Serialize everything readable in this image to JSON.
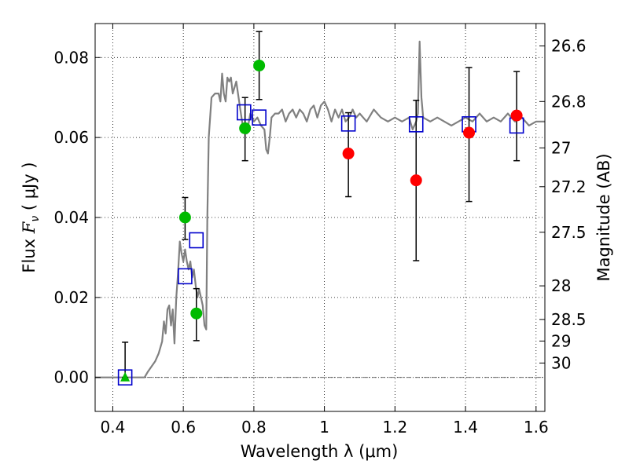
{
  "chart_data": {
    "type": "scatter",
    "xlabel": "Wavelength  λ (μm)",
    "ylabel_prefix": "Flux  ",
    "ylabel_var": "F",
    "ylabel_sub": "ν",
    "ylabel_suffix": "  ( μJy )",
    "y2label": "Magnitude (AB)",
    "xlim": [
      0.35,
      1.625
    ],
    "ylim": [
      -0.0085,
      0.0885
    ],
    "grid": true,
    "grid_style": "dotted",
    "x_ticks": [
      {
        "value": 0.4,
        "label": "0.4"
      },
      {
        "value": 0.6,
        "label": "0.6"
      },
      {
        "value": 0.8,
        "label": "0.8"
      },
      {
        "value": 1.0,
        "label": "1"
      },
      {
        "value": 1.2,
        "label": "1.2"
      },
      {
        "value": 1.4,
        "label": "1.4"
      },
      {
        "value": 1.6,
        "label": "1.6"
      }
    ],
    "y_ticks": [
      {
        "value": 0.0,
        "label": "0.00"
      },
      {
        "value": 0.02,
        "label": "0.02"
      },
      {
        "value": 0.04,
        "label": "0.04"
      },
      {
        "value": 0.06,
        "label": "0.06"
      },
      {
        "value": 0.08,
        "label": "0.08"
      }
    ],
    "y2_ticks": [
      {
        "flux": 0.0829,
        "label": "26.6"
      },
      {
        "flux": 0.069,
        "label": "26.8"
      },
      {
        "flux": 0.0574,
        "label": "27"
      },
      {
        "flux": 0.0477,
        "label": "27.2"
      },
      {
        "flux": 0.0363,
        "label": "27.5"
      },
      {
        "flux": 0.0229,
        "label": "28"
      },
      {
        "flux": 0.0145,
        "label": "28.5"
      },
      {
        "flux": 0.0091,
        "label": "29"
      },
      {
        "flux": 0.0036,
        "label": "30"
      }
    ],
    "zero_line": 0.0,
    "series": [
      {
        "kind": "line",
        "color": "#808080",
        "points": [
          [
            0.35,
            0.0
          ],
          [
            0.49,
            0.0
          ],
          [
            0.5,
            0.0015
          ],
          [
            0.52,
            0.004
          ],
          [
            0.53,
            0.006
          ],
          [
            0.54,
            0.009
          ],
          [
            0.545,
            0.014
          ],
          [
            0.55,
            0.011
          ],
          [
            0.555,
            0.017
          ],
          [
            0.56,
            0.018
          ],
          [
            0.565,
            0.013
          ],
          [
            0.57,
            0.017
          ],
          [
            0.575,
            0.0085
          ],
          [
            0.58,
            0.02
          ],
          [
            0.585,
            0.026
          ],
          [
            0.59,
            0.034
          ],
          [
            0.595,
            0.031
          ],
          [
            0.6,
            0.029
          ],
          [
            0.605,
            0.032
          ],
          [
            0.61,
            0.029
          ],
          [
            0.615,
            0.027
          ],
          [
            0.62,
            0.029
          ],
          [
            0.625,
            0.025
          ],
          [
            0.63,
            0.027
          ],
          [
            0.635,
            0.023
          ],
          [
            0.64,
            0.02
          ],
          [
            0.645,
            0.022
          ],
          [
            0.65,
            0.02
          ],
          [
            0.655,
            0.018
          ],
          [
            0.66,
            0.013
          ],
          [
            0.665,
            0.012
          ],
          [
            0.668,
            0.04
          ],
          [
            0.672,
            0.06
          ],
          [
            0.68,
            0.07
          ],
          [
            0.69,
            0.071
          ],
          [
            0.7,
            0.071
          ],
          [
            0.705,
            0.069
          ],
          [
            0.71,
            0.076
          ],
          [
            0.715,
            0.071
          ],
          [
            0.72,
            0.069
          ],
          [
            0.725,
            0.075
          ],
          [
            0.73,
            0.074
          ],
          [
            0.735,
            0.075
          ],
          [
            0.74,
            0.071
          ],
          [
            0.75,
            0.074
          ],
          [
            0.76,
            0.068
          ],
          [
            0.77,
            0.062
          ],
          [
            0.78,
            0.061
          ],
          [
            0.79,
            0.066
          ],
          [
            0.8,
            0.064
          ],
          [
            0.81,
            0.065
          ],
          [
            0.82,
            0.063
          ],
          [
            0.83,
            0.062
          ],
          [
            0.835,
            0.057
          ],
          [
            0.84,
            0.056
          ],
          [
            0.845,
            0.06
          ],
          [
            0.85,
            0.065
          ],
          [
            0.86,
            0.066
          ],
          [
            0.87,
            0.066
          ],
          [
            0.88,
            0.067
          ],
          [
            0.89,
            0.064
          ],
          [
            0.9,
            0.066
          ],
          [
            0.91,
            0.067
          ],
          [
            0.92,
            0.065
          ],
          [
            0.93,
            0.067
          ],
          [
            0.94,
            0.066
          ],
          [
            0.95,
            0.064
          ],
          [
            0.96,
            0.067
          ],
          [
            0.97,
            0.068
          ],
          [
            0.98,
            0.065
          ],
          [
            0.99,
            0.068
          ],
          [
            1.0,
            0.069
          ],
          [
            1.01,
            0.067
          ],
          [
            1.02,
            0.064
          ],
          [
            1.03,
            0.067
          ],
          [
            1.04,
            0.065
          ],
          [
            1.05,
            0.067
          ],
          [
            1.06,
            0.064
          ],
          [
            1.07,
            0.065
          ],
          [
            1.08,
            0.067
          ],
          [
            1.09,
            0.065
          ],
          [
            1.1,
            0.066
          ],
          [
            1.12,
            0.064
          ],
          [
            1.14,
            0.067
          ],
          [
            1.16,
            0.065
          ],
          [
            1.18,
            0.064
          ],
          [
            1.2,
            0.065
          ],
          [
            1.22,
            0.064
          ],
          [
            1.24,
            0.065
          ],
          [
            1.25,
            0.062
          ],
          [
            1.26,
            0.064
          ],
          [
            1.265,
            0.066
          ],
          [
            1.27,
            0.084
          ],
          [
            1.275,
            0.07
          ],
          [
            1.28,
            0.065
          ],
          [
            1.3,
            0.064
          ],
          [
            1.32,
            0.065
          ],
          [
            1.34,
            0.064
          ],
          [
            1.36,
            0.063
          ],
          [
            1.38,
            0.064
          ],
          [
            1.4,
            0.065
          ],
          [
            1.42,
            0.064
          ],
          [
            1.44,
            0.066
          ],
          [
            1.46,
            0.064
          ],
          [
            1.48,
            0.065
          ],
          [
            1.5,
            0.064
          ],
          [
            1.52,
            0.066
          ],
          [
            1.54,
            0.064
          ],
          [
            1.56,
            0.065
          ],
          [
            1.58,
            0.063
          ],
          [
            1.6,
            0.064
          ],
          [
            1.625,
            0.064
          ]
        ]
      },
      {
        "kind": "errorbar",
        "color": "#000000",
        "bars": [
          {
            "x": 0.435,
            "lo": 0.0,
            "hi": 0.0088
          },
          {
            "x": 0.605,
            "lo": 0.0345,
            "hi": 0.045
          },
          {
            "x": 0.637,
            "lo": 0.0092,
            "hi": 0.0222
          },
          {
            "x": 0.775,
            "lo": 0.0542,
            "hi": 0.07
          },
          {
            "x": 0.815,
            "lo": 0.0695,
            "hi": 0.0865
          },
          {
            "x": 1.068,
            "lo": 0.0452,
            "hi": 0.0662
          },
          {
            "x": 1.26,
            "lo": 0.0292,
            "hi": 0.0693
          },
          {
            "x": 1.41,
            "lo": 0.044,
            "hi": 0.0775
          },
          {
            "x": 1.545,
            "lo": 0.0542,
            "hi": 0.0765
          }
        ]
      },
      {
        "kind": "open-square",
        "color": "#0000cc",
        "points": [
          [
            0.435,
            0.0
          ],
          [
            0.605,
            0.0253
          ],
          [
            0.637,
            0.0343
          ],
          [
            0.772,
            0.0663
          ],
          [
            0.815,
            0.065
          ],
          [
            1.068,
            0.0635
          ],
          [
            1.26,
            0.0633
          ],
          [
            1.41,
            0.0633
          ],
          [
            1.545,
            0.063
          ]
        ]
      },
      {
        "kind": "dot",
        "color": "#00bb00",
        "points": [
          [
            0.605,
            0.04
          ],
          [
            0.637,
            0.016
          ],
          [
            0.775,
            0.0623
          ],
          [
            0.815,
            0.078
          ]
        ]
      },
      {
        "kind": "dot",
        "color": "#ff0000",
        "points": [
          [
            1.068,
            0.056
          ],
          [
            1.26,
            0.0493
          ],
          [
            1.41,
            0.0612
          ],
          [
            1.545,
            0.0655
          ]
        ]
      },
      {
        "kind": "triangle",
        "color": "#00bb00",
        "points": [
          [
            0.435,
            0.0
          ]
        ]
      }
    ]
  }
}
